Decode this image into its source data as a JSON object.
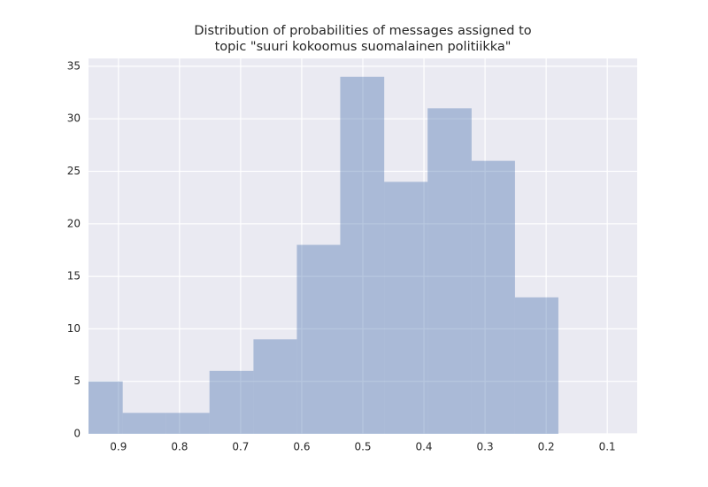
{
  "chart_data": {
    "type": "histogram",
    "title": [
      "Distribution of probabilities of messages assigned to",
      "topic \"suuri kokoomus suomalainen politiikka\""
    ],
    "bins": [
      0.18,
      0.251,
      0.322,
      0.394,
      0.465,
      0.537,
      0.608,
      0.679,
      0.751,
      0.822,
      0.893,
      0.965
    ],
    "counts": [
      13,
      26,
      31,
      24,
      34,
      18,
      9,
      6,
      2,
      2,
      5
    ],
    "color": "#4c72b0",
    "opacity": 0.4,
    "xlim": [
      0.949,
      0.051
    ],
    "xticks": [
      0.9,
      0.8,
      0.7,
      0.6,
      0.5,
      0.4,
      0.3,
      0.2,
      0.1
    ],
    "ylim": [
      0,
      35.75
    ],
    "yticks": [
      0,
      5,
      10,
      15,
      20,
      25,
      30,
      35
    ],
    "grid": true
  }
}
